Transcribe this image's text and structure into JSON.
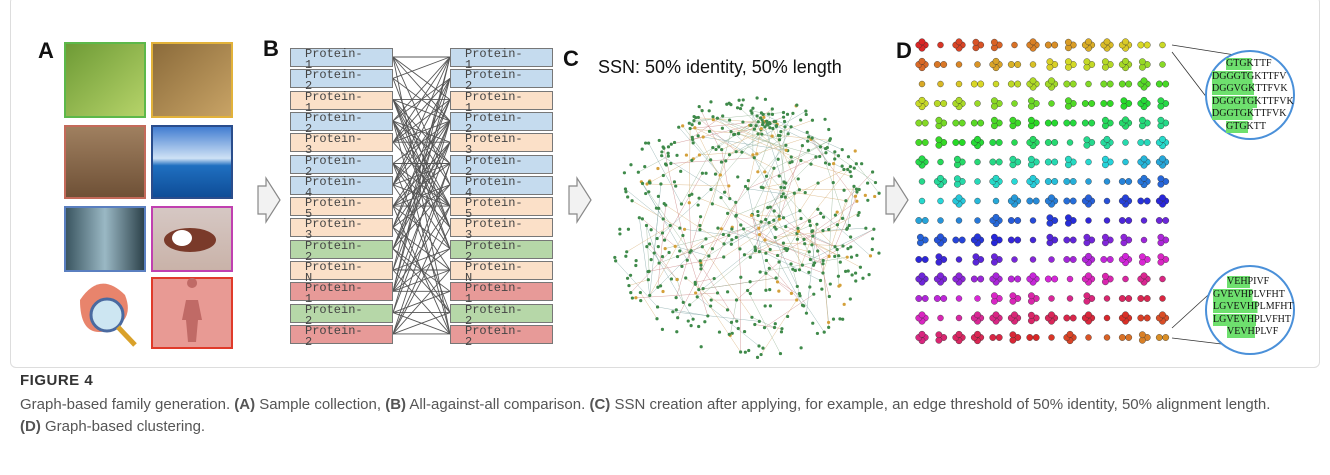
{
  "panels": {
    "a": "A",
    "b": "B",
    "c": "C",
    "d": "D"
  },
  "ssn_title": "SSN: 50% identity, 50% length",
  "left_proteins": [
    {
      "label": "Protein-1",
      "color": "#c5dbee"
    },
    {
      "label": "Protein-2",
      "color": "#c5dbee"
    },
    {
      "label": "Protein-1",
      "color": "#fbe0c8"
    },
    {
      "label": "Protein-2",
      "color": "#c5dbee"
    },
    {
      "label": "Protein-3",
      "color": "#fbe0c8"
    },
    {
      "label": "Protein-2",
      "color": "#c5dbee"
    },
    {
      "label": "Protein-4",
      "color": "#c5dbee"
    },
    {
      "label": "Protein-5",
      "color": "#fbe0c8"
    },
    {
      "label": "Protein-3",
      "color": "#fbe0c8"
    },
    {
      "label": "Protein-2",
      "color": "#b6d7a8"
    },
    {
      "label": "Protein-N",
      "color": "#fbe0c8"
    },
    {
      "label": "Protein-1",
      "color": "#e79a98"
    },
    {
      "label": "Protein-2",
      "color": "#b6d7a8"
    },
    {
      "label": "Protein-2",
      "color": "#e79a98"
    }
  ],
  "right_proteins": [
    {
      "label": "Protein-1",
      "color": "#c5dbee"
    },
    {
      "label": "Protein-2",
      "color": "#c5dbee"
    },
    {
      "label": "Protein-1",
      "color": "#fbe0c8"
    },
    {
      "label": "Protein-2",
      "color": "#c5dbee"
    },
    {
      "label": "Protein-3",
      "color": "#fbe0c8"
    },
    {
      "label": "Protein-2",
      "color": "#c5dbee"
    },
    {
      "label": "Protein-4",
      "color": "#c5dbee"
    },
    {
      "label": "Protein-5",
      "color": "#fbe0c8"
    },
    {
      "label": "Protein-3",
      "color": "#fbe0c8"
    },
    {
      "label": "Protein-2",
      "color": "#b6d7a8"
    },
    {
      "label": "Protein-N",
      "color": "#fbe0c8"
    },
    {
      "label": "Protein-1",
      "color": "#e79a98"
    },
    {
      "label": "Protein-2",
      "color": "#b6d7a8"
    },
    {
      "label": "Protein-2",
      "color": "#e79a98"
    }
  ],
  "zoom_top": [
    "GTGKTTF",
    "DGGGTGKTTFV",
    "DGGVGKTTFVK",
    "DGGGTGKTTFVK",
    "DGGTGKTTFVK",
    "GTGKTT"
  ],
  "zoom_bottom": [
    "VEHPIVF",
    "GVEVHPLVFHT",
    "LGVEVHPLMFHT",
    "LGVEVHPLVFHT",
    "VEVHPLVF"
  ],
  "caption": {
    "label": "FIGURE 4",
    "segments": [
      "Graph-based family generation. ",
      "(A)",
      " Sample collection, ",
      "(B)",
      " All-against-all comparison. ",
      "(C)",
      " SSN creation after applying, for example, an edge threshold of 50% identity, 50% alignment length. ",
      "(D)",
      " Graph-based clustering."
    ]
  }
}
